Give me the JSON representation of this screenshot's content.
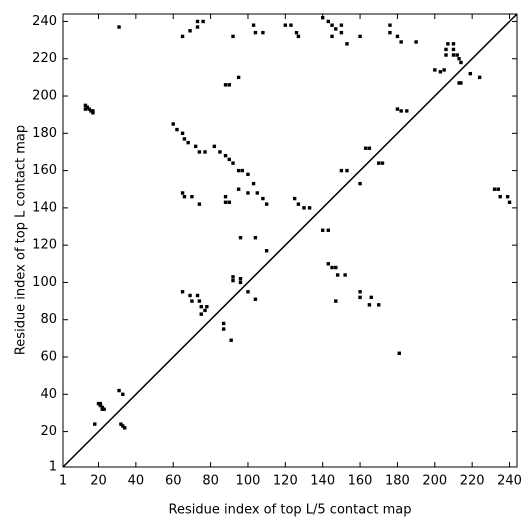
{
  "chart_data": {
    "type": "scatter",
    "x_label": "Residue index of top L/5 contact map",
    "y_label": "Residue index of top L contact map",
    "xlim": [
      1,
      244
    ],
    "ylim": [
      1,
      244
    ],
    "xticks": [
      1,
      20,
      40,
      60,
      80,
      100,
      120,
      140,
      160,
      180,
      200,
      220,
      240
    ],
    "yticks": [
      1,
      20,
      40,
      60,
      80,
      100,
      120,
      140,
      160,
      180,
      200,
      220,
      240
    ],
    "diagonal": true,
    "color": "#000000",
    "x": [
      31,
      13,
      14,
      13,
      15,
      16,
      17,
      17,
      20,
      21,
      22,
      23,
      21,
      22,
      32,
      33,
      34,
      31,
      33,
      18,
      60,
      62,
      65,
      66,
      68,
      72,
      74,
      77,
      82,
      85,
      88,
      90,
      92,
      95,
      97,
      100,
      88,
      90,
      88,
      95,
      103,
      105,
      108,
      110,
      100,
      65,
      66,
      70,
      74,
      88,
      90,
      95,
      65,
      69,
      73,
      76,
      73,
      92,
      103,
      104,
      108,
      120,
      123,
      126,
      127,
      140,
      143,
      145,
      147,
      150,
      153,
      145,
      150,
      160,
      176,
      176,
      180,
      182,
      190,
      125,
      127,
      130,
      133,
      140,
      143,
      96,
      104,
      110,
      143,
      145,
      147,
      148,
      152,
      147,
      65,
      69,
      70,
      73,
      74,
      75,
      77,
      78,
      75,
      87,
      87,
      91,
      92,
      92,
      96,
      96,
      100,
      104,
      150,
      153,
      160,
      163,
      165,
      170,
      172,
      160,
      160,
      165,
      166,
      170,
      180,
      182,
      185,
      181,
      200,
      203,
      205,
      206,
      206,
      207,
      210,
      210,
      210,
      212,
      213,
      214,
      213,
      214,
      219,
      224,
      232,
      234,
      235,
      239,
      240
    ],
    "y": [
      237,
      195,
      194,
      193,
      193,
      192,
      191,
      192,
      35,
      34,
      33,
      32,
      35,
      32,
      24,
      23,
      22,
      42,
      40,
      24,
      185,
      182,
      180,
      177,
      175,
      173,
      170,
      170,
      173,
      170,
      168,
      166,
      164,
      160,
      160,
      158,
      146,
      143,
      143,
      150,
      153,
      148,
      145,
      142,
      148,
      148,
      146,
      146,
      142,
      206,
      206,
      210,
      232,
      235,
      237,
      240,
      240,
      232,
      238,
      234,
      234,
      238,
      238,
      234,
      232,
      242,
      240,
      238,
      236,
      234,
      228,
      232,
      238,
      232,
      238,
      234,
      232,
      229,
      229,
      145,
      142,
      140,
      140,
      128,
      128,
      124,
      124,
      117,
      110,
      108,
      108,
      104,
      104,
      90,
      95,
      93,
      90,
      93,
      90,
      87,
      85,
      87,
      83,
      78,
      75,
      69,
      103,
      101,
      102,
      100,
      95,
      91,
      160,
      160,
      153,
      172,
      172,
      164,
      164,
      95,
      92,
      88,
      92,
      88,
      193,
      192,
      192,
      62,
      214,
      213,
      214,
      222,
      225,
      228,
      228,
      225,
      222,
      222,
      220,
      218,
      207,
      207,
      212,
      210,
      150,
      150,
      146,
      146,
      143
    ]
  }
}
